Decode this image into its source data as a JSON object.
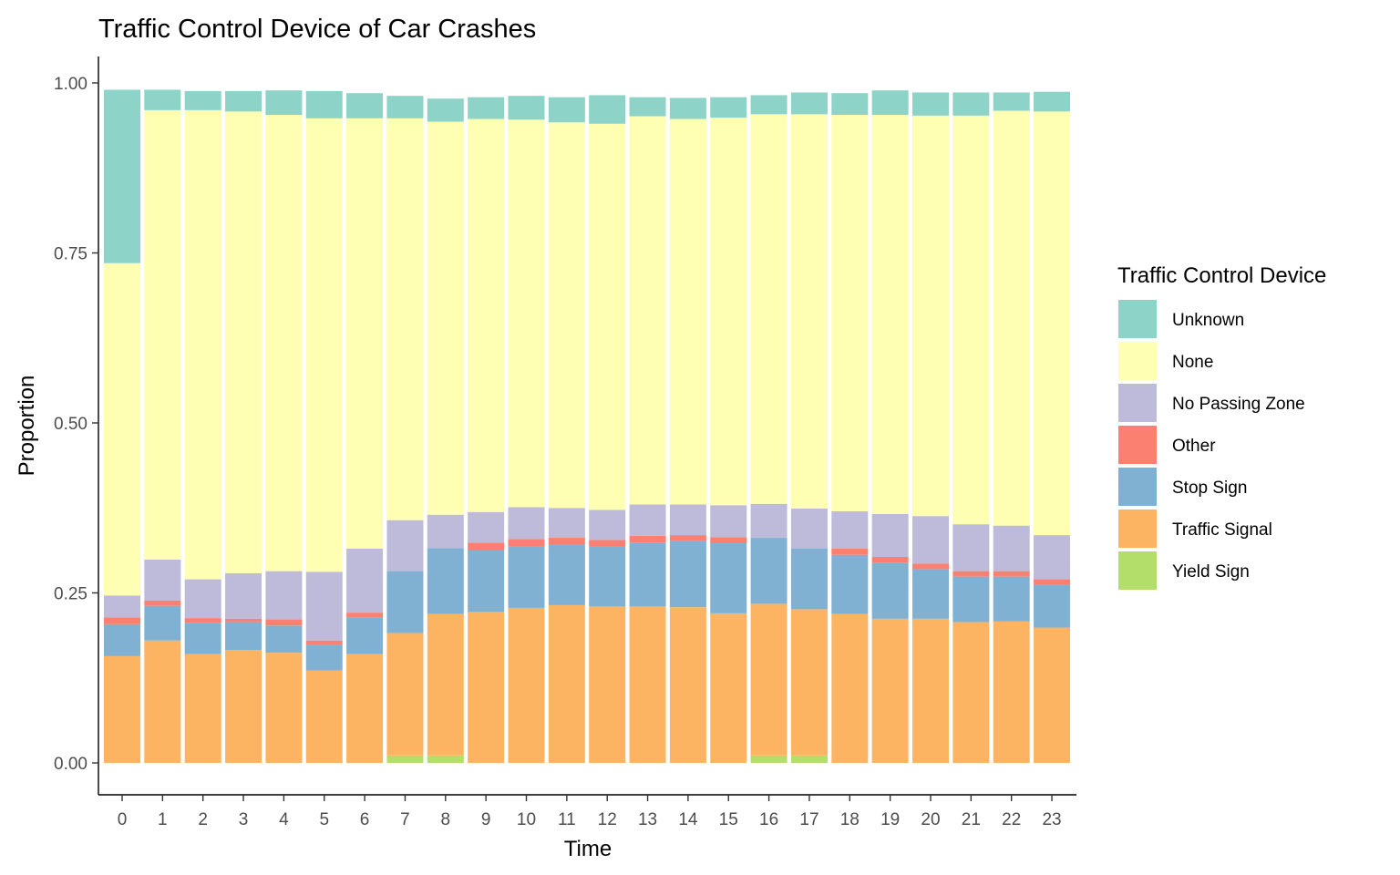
{
  "chart_data": {
    "type": "bar",
    "stacked": true,
    "title": "Traffic Control Device of Car Crashes",
    "xlabel": "Time",
    "ylabel": "Proportion",
    "ylim": [
      0,
      1.05
    ],
    "yticks": [
      "0.00",
      "0.25",
      "0.50",
      "0.75",
      "1.00"
    ],
    "ytick_values": [
      0,
      0.25,
      0.5,
      0.75,
      1.0
    ],
    "grid": false,
    "legend_position": "right",
    "legend_title": "Traffic Control Device",
    "categories": [
      "0",
      "1",
      "2",
      "3",
      "4",
      "5",
      "6",
      "7",
      "8",
      "9",
      "10",
      "11",
      "12",
      "13",
      "14",
      "15",
      "16",
      "17",
      "18",
      "19",
      "20",
      "21",
      "22",
      "23"
    ],
    "series": [
      {
        "name": "Yield Sign",
        "color": "#B3DE69",
        "values": [
          0,
          0,
          0,
          0,
          0,
          0,
          0,
          0.011,
          0.011,
          0,
          0,
          0,
          0,
          0,
          0,
          0,
          0.011,
          0.011,
          0,
          0,
          0,
          0,
          0,
          0
        ]
      },
      {
        "name": "Traffic Signal",
        "color": "#FDB462",
        "values": [
          0.157,
          0.18,
          0.16,
          0.166,
          0.162,
          0.136,
          0.16,
          0.18,
          0.208,
          0.222,
          0.228,
          0.232,
          0.23,
          0.23,
          0.229,
          0.22,
          0.223,
          0.215,
          0.219,
          0.212,
          0.212,
          0.207,
          0.208,
          0.199
        ]
      },
      {
        "name": "Stop Sign",
        "color": "#80B1D3",
        "values": [
          0.047,
          0.051,
          0.046,
          0.041,
          0.04,
          0.037,
          0.054,
          0.091,
          0.097,
          0.091,
          0.091,
          0.089,
          0.089,
          0.094,
          0.097,
          0.103,
          0.097,
          0.089,
          0.087,
          0.082,
          0.073,
          0.067,
          0.066,
          0.063
        ]
      },
      {
        "name": "Other",
        "color": "#FB8072",
        "values": [
          0.01,
          0.008,
          0.007,
          0.005,
          0.009,
          0.007,
          0.007,
          0,
          0,
          0.011,
          0.01,
          0.01,
          0.009,
          0.01,
          0.009,
          0.009,
          0,
          0,
          0.009,
          0.009,
          0.008,
          0.008,
          0.008,
          0.008
        ]
      },
      {
        "name": "No Passing Zone",
        "color": "#BEBADA",
        "values": [
          0.032,
          0.06,
          0.057,
          0.067,
          0.071,
          0.101,
          0.094,
          0.075,
          0.049,
          0.045,
          0.047,
          0.044,
          0.044,
          0.046,
          0.045,
          0.047,
          0.05,
          0.059,
          0.055,
          0.063,
          0.07,
          0.069,
          0.067,
          0.065
        ]
      },
      {
        "name": "None",
        "color": "#FFFFB3",
        "values": [
          0.489,
          0.661,
          0.69,
          0.679,
          0.671,
          0.667,
          0.633,
          0.591,
          0.578,
          0.578,
          0.57,
          0.567,
          0.568,
          0.571,
          0.567,
          0.57,
          0.573,
          0.58,
          0.583,
          0.587,
          0.589,
          0.601,
          0.61,
          0.623
        ]
      },
      {
        "name": "Unknown",
        "color": "#8DD3C7",
        "values": [
          0.255,
          0.03,
          0.028,
          0.03,
          0.036,
          0.04,
          0.037,
          0.033,
          0.034,
          0.032,
          0.035,
          0.037,
          0.042,
          0.028,
          0.031,
          0.03,
          0.028,
          0.032,
          0.032,
          0.036,
          0.034,
          0.034,
          0.027,
          0.029
        ]
      }
    ],
    "legend_order": [
      "Unknown",
      "None",
      "No Passing Zone",
      "Other",
      "Stop Sign",
      "Traffic Signal",
      "Yield Sign"
    ]
  }
}
